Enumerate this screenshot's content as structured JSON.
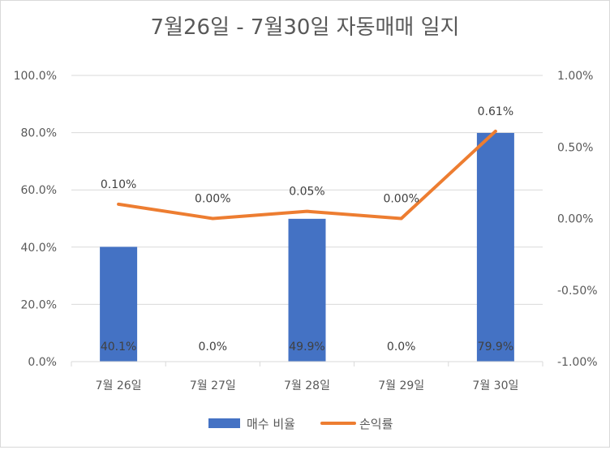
{
  "chart_data": {
    "type": "bar",
    "title": "7월26일 - 7월30일 자동매매 일지",
    "categories": [
      "7월 26일",
      "7월 27일",
      "7월 28일",
      "7월 29일",
      "7월 30일"
    ],
    "series": [
      {
        "name": "매수 비율",
        "type": "bar",
        "axis": "left",
        "values": [
          40.1,
          0.0,
          49.9,
          0.0,
          79.9
        ],
        "labels": [
          "40.1%",
          "0.0%",
          "49.9%",
          "0.0%",
          "79.9%"
        ],
        "color": "#4472c4"
      },
      {
        "name": "손익률",
        "type": "line",
        "axis": "right",
        "values": [
          0.1,
          0.0,
          0.05,
          0.0,
          0.61
        ],
        "labels": [
          "0.10%",
          "0.00%",
          "0.05%",
          "0.00%",
          "0.61%"
        ],
        "color": "#ed7d31"
      }
    ],
    "y_left": {
      "ylim": [
        0,
        100
      ],
      "ticks": [
        0,
        20,
        40,
        60,
        80,
        100
      ],
      "tick_labels": [
        "0.0%",
        "20.0%",
        "40.0%",
        "60.0%",
        "80.0%",
        "100.0%"
      ]
    },
    "y_right": {
      "ylim": [
        -1.0,
        1.0
      ],
      "ticks": [
        -1.0,
        -0.5,
        0.0,
        0.5,
        1.0
      ],
      "tick_labels": [
        "-1.00%",
        "-0.50%",
        "0.00%",
        "0.50%",
        "1.00%"
      ]
    },
    "grid": true,
    "legend": "bottom"
  }
}
